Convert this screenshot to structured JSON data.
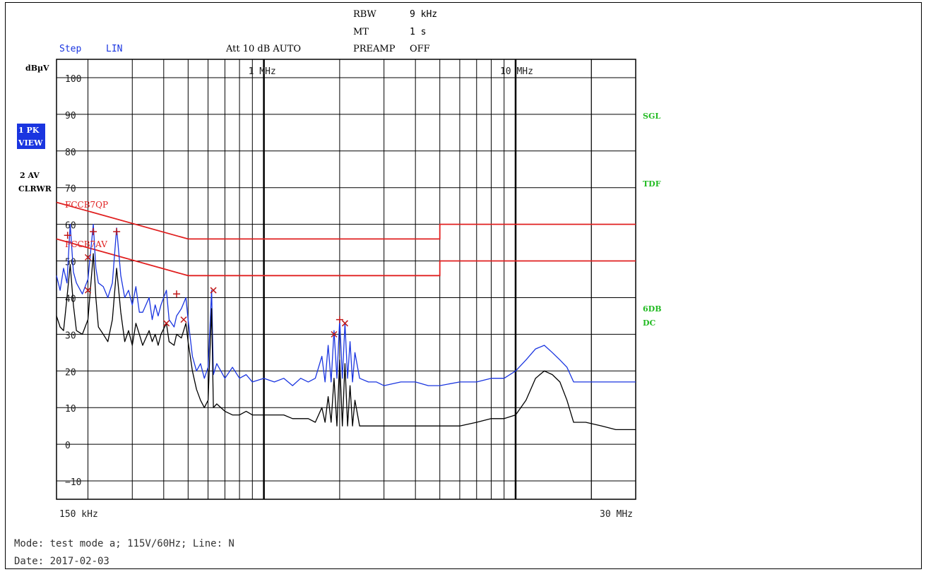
{
  "header": {
    "rbw_label": "RBW",
    "rbw_value": "9 kHz",
    "mt_label": "MT",
    "mt_value": "1 s",
    "step_label": "Step",
    "step_value": "LIN",
    "att_label": "Att 10 dB AUTO",
    "preamp_label": "PREAMP",
    "preamp_value": "OFF"
  },
  "left_labels": {
    "unit": "dBµV",
    "trace1_line1": "1 PK",
    "trace1_line2": "VIEW",
    "trace2_line1": "2 AV",
    "trace2_line2": "CLRWR"
  },
  "right_labels": {
    "sgl": "SGL",
    "tdf": "TDF",
    "sixdb": "6DB",
    "dc": "DC"
  },
  "limit_labels": {
    "qp": "FCCB7QP",
    "av": "FCCB7AV"
  },
  "footer": {
    "mode": "Mode: test mode a; 115V/60Hz; Line: N",
    "date": "Date: 2017-02-03"
  },
  "colors": {
    "peak_trace": "#1a35e0",
    "average_trace": "#000000",
    "limit_line": "#e02020",
    "marker": "#c01818",
    "status_green": "#22bb22",
    "highlight": "#1a35e0"
  },
  "chart_data": {
    "type": "line",
    "xscale": "log",
    "xlim_mhz": [
      0.15,
      30
    ],
    "ylim": [
      -15,
      105
    ],
    "ylabel": "dBµV",
    "y_ticks": [
      100,
      90,
      80,
      70,
      60,
      50,
      40,
      30,
      20,
      10,
      0,
      -10
    ],
    "y_tick_labels": [
      "100",
      "90",
      "80",
      "70",
      "60",
      "50",
      "40",
      "30",
      "20",
      "10",
      "0",
      "−10"
    ],
    "x_tick_labels": [
      {
        "mhz": 0.15,
        "label": "150 kHz"
      },
      {
        "mhz": 1,
        "label": "1 MHz"
      },
      {
        "mhz": 10,
        "label": "10 MHz"
      },
      {
        "mhz": 30,
        "label": "30 MHz"
      }
    ],
    "grid": true,
    "limit_lines": [
      {
        "name": "FCCB7QP",
        "points": [
          [
            0.15,
            66
          ],
          [
            0.5,
            56
          ],
          [
            5,
            56
          ],
          [
            5,
            60
          ],
          [
            30,
            60
          ]
        ]
      },
      {
        "name": "FCCB7AV",
        "points": [
          [
            0.15,
            56
          ],
          [
            0.5,
            46
          ],
          [
            5,
            46
          ],
          [
            5,
            50
          ],
          [
            30,
            50
          ]
        ]
      }
    ],
    "series": [
      {
        "name": "1 PK",
        "points": [
          [
            0.15,
            46
          ],
          [
            0.155,
            42
          ],
          [
            0.16,
            48
          ],
          [
            0.165,
            44
          ],
          [
            0.17,
            60
          ],
          [
            0.175,
            47
          ],
          [
            0.18,
            44
          ],
          [
            0.19,
            41
          ],
          [
            0.2,
            45
          ],
          [
            0.21,
            60
          ],
          [
            0.215,
            48
          ],
          [
            0.22,
            44
          ],
          [
            0.23,
            43
          ],
          [
            0.24,
            40
          ],
          [
            0.25,
            44
          ],
          [
            0.26,
            59
          ],
          [
            0.27,
            46
          ],
          [
            0.28,
            40
          ],
          [
            0.29,
            42
          ],
          [
            0.3,
            38
          ],
          [
            0.31,
            43
          ],
          [
            0.32,
            36
          ],
          [
            0.33,
            36
          ],
          [
            0.35,
            40
          ],
          [
            0.36,
            34
          ],
          [
            0.37,
            38
          ],
          [
            0.38,
            35
          ],
          [
            0.39,
            38
          ],
          [
            0.41,
            42
          ],
          [
            0.42,
            34
          ],
          [
            0.44,
            32
          ],
          [
            0.45,
            35
          ],
          [
            0.47,
            37
          ],
          [
            0.49,
            40
          ],
          [
            0.5,
            34
          ],
          [
            0.52,
            24
          ],
          [
            0.54,
            20
          ],
          [
            0.56,
            22
          ],
          [
            0.58,
            18
          ],
          [
            0.6,
            21
          ],
          [
            0.62,
            42
          ],
          [
            0.63,
            19
          ],
          [
            0.65,
            22
          ],
          [
            0.7,
            18
          ],
          [
            0.75,
            21
          ],
          [
            0.8,
            18
          ],
          [
            0.85,
            19
          ],
          [
            0.9,
            17
          ],
          [
            1.0,
            18
          ],
          [
            1.1,
            17
          ],
          [
            1.2,
            18
          ],
          [
            1.3,
            16
          ],
          [
            1.4,
            18
          ],
          [
            1.5,
            17
          ],
          [
            1.6,
            18
          ],
          [
            1.7,
            24
          ],
          [
            1.75,
            17
          ],
          [
            1.8,
            27
          ],
          [
            1.85,
            17
          ],
          [
            1.9,
            31
          ],
          [
            1.95,
            18
          ],
          [
            2.0,
            34
          ],
          [
            2.05,
            18
          ],
          [
            2.1,
            33
          ],
          [
            2.15,
            18
          ],
          [
            2.2,
            28
          ],
          [
            2.25,
            17
          ],
          [
            2.3,
            25
          ],
          [
            2.4,
            18
          ],
          [
            2.6,
            17
          ],
          [
            2.8,
            17
          ],
          [
            3.0,
            16
          ],
          [
            3.5,
            17
          ],
          [
            4.0,
            17
          ],
          [
            4.5,
            16
          ],
          [
            5.0,
            16
          ],
          [
            6.0,
            17
          ],
          [
            7.0,
            17
          ],
          [
            8.0,
            18
          ],
          [
            9.0,
            18
          ],
          [
            10.0,
            20
          ],
          [
            11.0,
            23
          ],
          [
            12.0,
            26
          ],
          [
            13.0,
            27
          ],
          [
            14.0,
            25
          ],
          [
            15.0,
            23
          ],
          [
            16.0,
            21
          ],
          [
            17.0,
            17
          ],
          [
            19.0,
            17
          ],
          [
            22.0,
            17
          ],
          [
            25.0,
            17
          ],
          [
            30.0,
            17
          ]
        ]
      },
      {
        "name": "2 AV",
        "points": [
          [
            0.15,
            35
          ],
          [
            0.155,
            32
          ],
          [
            0.16,
            31
          ],
          [
            0.165,
            40
          ],
          [
            0.17,
            49
          ],
          [
            0.175,
            38
          ],
          [
            0.18,
            31
          ],
          [
            0.19,
            30
          ],
          [
            0.2,
            34
          ],
          [
            0.21,
            52
          ],
          [
            0.215,
            40
          ],
          [
            0.22,
            32
          ],
          [
            0.23,
            30
          ],
          [
            0.24,
            28
          ],
          [
            0.25,
            34
          ],
          [
            0.26,
            48
          ],
          [
            0.27,
            36
          ],
          [
            0.28,
            28
          ],
          [
            0.29,
            31
          ],
          [
            0.3,
            27
          ],
          [
            0.31,
            33
          ],
          [
            0.32,
            30
          ],
          [
            0.33,
            27
          ],
          [
            0.35,
            31
          ],
          [
            0.36,
            28
          ],
          [
            0.37,
            30
          ],
          [
            0.38,
            27
          ],
          [
            0.39,
            30
          ],
          [
            0.41,
            33
          ],
          [
            0.42,
            28
          ],
          [
            0.44,
            27
          ],
          [
            0.45,
            30
          ],
          [
            0.47,
            29
          ],
          [
            0.49,
            33
          ],
          [
            0.5,
            28
          ],
          [
            0.52,
            20
          ],
          [
            0.54,
            15
          ],
          [
            0.56,
            12
          ],
          [
            0.58,
            10
          ],
          [
            0.6,
            12
          ],
          [
            0.62,
            37
          ],
          [
            0.63,
            10
          ],
          [
            0.65,
            11
          ],
          [
            0.7,
            9
          ],
          [
            0.75,
            8
          ],
          [
            0.8,
            8
          ],
          [
            0.85,
            9
          ],
          [
            0.9,
            8
          ],
          [
            1.0,
            8
          ],
          [
            1.1,
            8
          ],
          [
            1.2,
            8
          ],
          [
            1.3,
            7
          ],
          [
            1.4,
            7
          ],
          [
            1.5,
            7
          ],
          [
            1.6,
            6
          ],
          [
            1.7,
            10
          ],
          [
            1.75,
            6
          ],
          [
            1.8,
            13
          ],
          [
            1.85,
            6
          ],
          [
            1.9,
            18
          ],
          [
            1.95,
            5
          ],
          [
            2.0,
            23
          ],
          [
            2.05,
            5
          ],
          [
            2.1,
            22
          ],
          [
            2.15,
            5
          ],
          [
            2.2,
            16
          ],
          [
            2.25,
            5
          ],
          [
            2.3,
            12
          ],
          [
            2.4,
            5
          ],
          [
            2.6,
            5
          ],
          [
            2.8,
            5
          ],
          [
            3.0,
            5
          ],
          [
            3.5,
            5
          ],
          [
            4.0,
            5
          ],
          [
            4.5,
            5
          ],
          [
            5.0,
            5
          ],
          [
            6.0,
            5
          ],
          [
            7.0,
            6
          ],
          [
            8.0,
            7
          ],
          [
            9.0,
            7
          ],
          [
            10.0,
            8
          ],
          [
            11.0,
            12
          ],
          [
            12.0,
            18
          ],
          [
            13.0,
            20
          ],
          [
            14.0,
            19
          ],
          [
            15.0,
            17
          ],
          [
            16.0,
            12
          ],
          [
            17.0,
            6
          ],
          [
            19.0,
            6
          ],
          [
            22.0,
            5
          ],
          [
            25.0,
            4
          ],
          [
            30.0,
            4
          ]
        ]
      }
    ],
    "markers_plus": [
      [
        0.166,
        57
      ],
      [
        0.21,
        58
      ],
      [
        0.26,
        58
      ],
      [
        0.45,
        41
      ],
      [
        2.0,
        34
      ]
    ],
    "markers_x": [
      [
        0.2,
        51
      ],
      [
        0.2,
        42
      ],
      [
        0.41,
        33
      ],
      [
        0.48,
        34
      ],
      [
        0.63,
        42
      ],
      [
        1.9,
        30
      ],
      [
        2.1,
        33
      ]
    ]
  }
}
